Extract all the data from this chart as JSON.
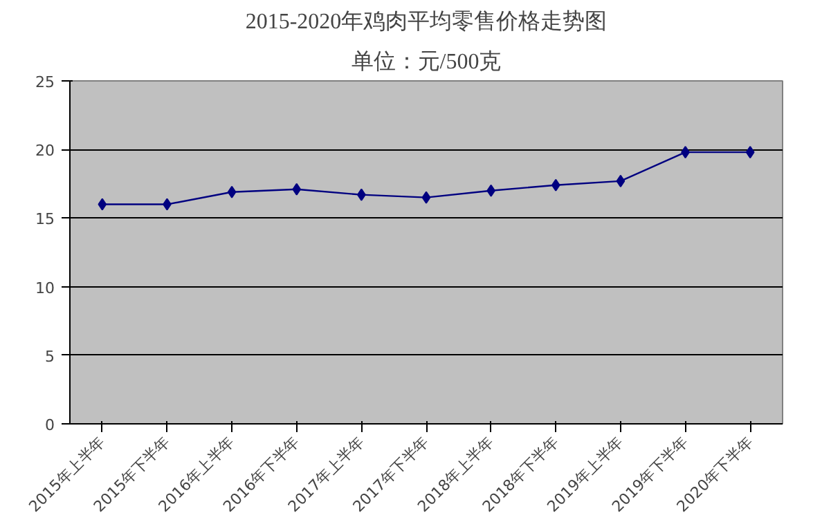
{
  "chart_data": {
    "type": "line",
    "title": "2015-2020年鸡肉平均零售价格走势图",
    "subtitle": "单位：元/500克",
    "categories": [
      "2015年上半年",
      "2015年下半年",
      "2016年上半年",
      "2016年下半年",
      "2017年上半年",
      "2017年下半年",
      "2018年上半年",
      "2018年下半年",
      "2019年上半年",
      "2019年下半年",
      "2020年下半年"
    ],
    "series": [
      {
        "color": "#000080",
        "values": [
          16.0,
          16.0,
          16.9,
          17.1,
          16.7,
          16.5,
          17.0,
          17.4,
          17.7,
          19.8,
          19.8
        ]
      }
    ],
    "ylim": [
      0,
      25
    ],
    "yticks": [
      0,
      5,
      10,
      15,
      20,
      25
    ],
    "grid": "y",
    "marker": "diamond"
  }
}
